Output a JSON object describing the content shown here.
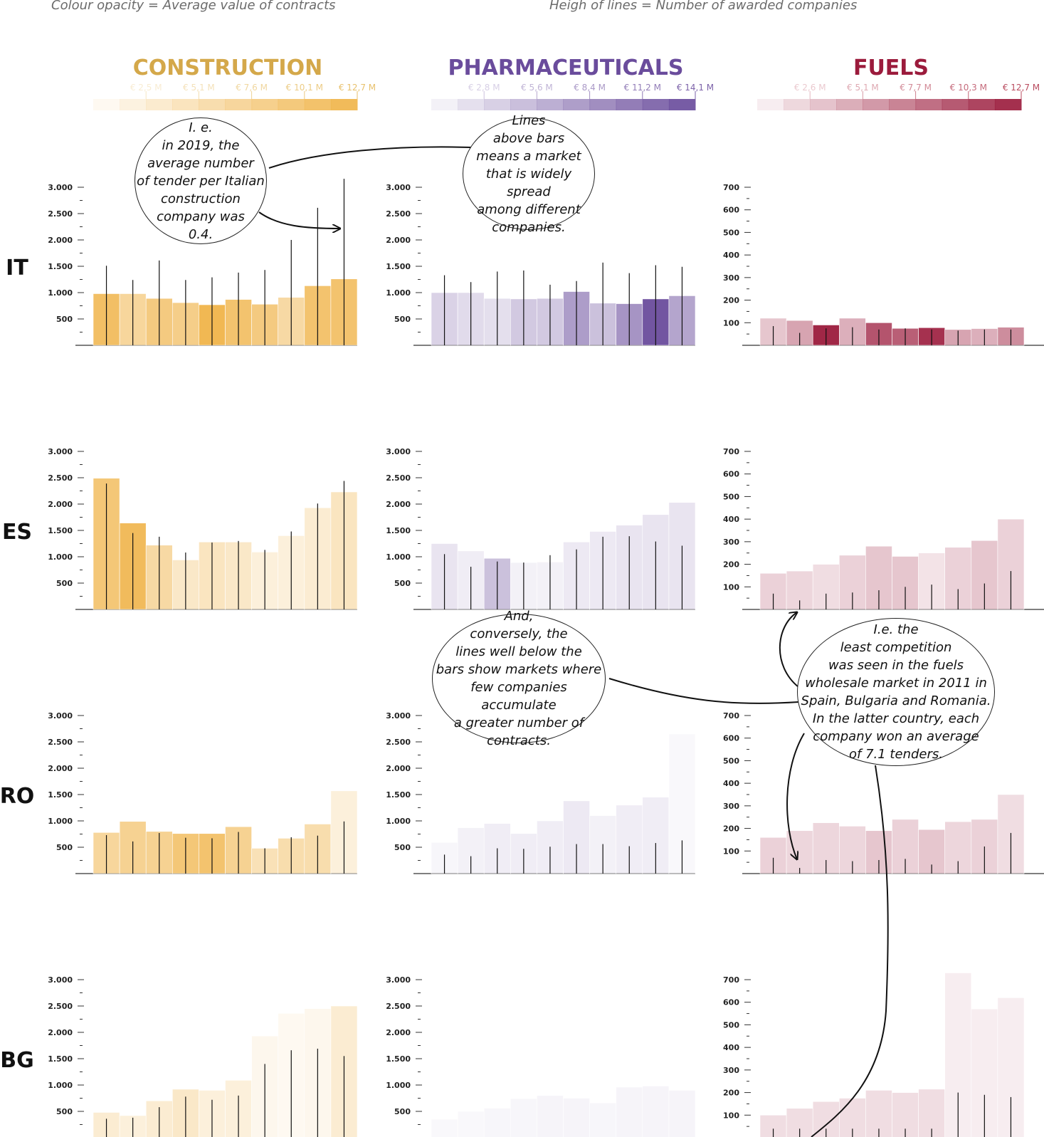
{
  "header": {
    "left_note": "Colour opacity = Average value of contracts",
    "right_note": "Heigh of lines = Number of awarded companies"
  },
  "annotations": [
    "I. e.\nin 2019, the\naverage number\nof tender per Italian\nconstruction\ncompany was\n0.4.",
    "Lines\nabove bars\nmeans a market\nthat is widely spread\namong different\ncompanies.",
    "And,\nconversely, the\nlines well below the\nbars show markets where\nfew companies accumulate\na greater number of\ncontracts.",
    "I.e. the\nleast competition\nwas seen in the fuels\nwholesale market in 2011 in\nSpain, Bulgaria and Romania.\nIn the latter country, each\ncompany won an average\nof 7.1 tenders."
  ],
  "chart_data": {
    "type": "bar",
    "countries": [
      "IT",
      "ES",
      "RO",
      "BG"
    ],
    "sectors": [
      {
        "name": "CONSTRUCTION",
        "color": "#f0b44a",
        "title_color": "#d4a84a",
        "label_color": "#e8c06a",
        "legend_labels": [
          "€ 2,5 M",
          "€ 5,1 M",
          "€ 7,6 M",
          "€ 10,1 M",
          "€ 12,7 M"
        ],
        "ylim": [
          0,
          3000
        ],
        "ticks": [
          500,
          1000,
          1500,
          2000,
          2500,
          3000
        ],
        "tick_labels": [
          "500",
          "1.000",
          "1.500",
          "2.000",
          "2.500",
          "3.000"
        ],
        "rows": [
          {
            "country": "IT",
            "bars": [
              980,
              980,
              890,
              810,
              770,
              870,
              780,
              910,
              1130,
              1260
            ],
            "opacity": [
              0.85,
              0.55,
              0.7,
              0.65,
              0.95,
              0.8,
              0.7,
              0.5,
              0.8,
              0.8
            ],
            "lines": [
              1510,
              1240,
              1610,
              1240,
              1290,
              1380,
              1430,
              2000,
              2610,
              3160
            ]
          },
          {
            "country": "ES",
            "bars": [
              2490,
              1640,
              1220,
              940,
              1280,
              1280,
              1090,
              1400,
              1930,
              2230
            ],
            "opacity": [
              0.75,
              0.9,
              0.5,
              0.3,
              0.35,
              0.3,
              0.2,
              0.2,
              0.25,
              0.35
            ],
            "lines": [
              2390,
              1450,
              1380,
              1080,
              1270,
              1300,
              1130,
              1480,
              2010,
              2440
            ]
          },
          {
            "country": "RO",
            "bars": [
              780,
              990,
              800,
              760,
              760,
              890,
              480,
              670,
              940,
              1570
            ],
            "opacity": [
              0.55,
              0.6,
              0.6,
              0.75,
              0.8,
              0.6,
              0.4,
              0.45,
              0.45,
              0.2
            ],
            "lines": [
              730,
              610,
              770,
              680,
              670,
              790,
              480,
              690,
              720,
              990
            ]
          },
          {
            "country": "BG",
            "bars": [
              480,
              420,
              700,
              920,
              900,
              1090,
              1930,
              2360,
              2450,
              2500
            ],
            "opacity": [
              0.25,
              0.2,
              0.25,
              0.3,
              0.2,
              0.2,
              0.1,
              0.08,
              0.1,
              0.25
            ],
            "lines": [
              360,
              380,
              580,
              780,
              720,
              800,
              1400,
              1660,
              1690,
              1550
            ]
          }
        ]
      },
      {
        "name": "PHARMACEUTICALS",
        "color": "#6a4c9c",
        "title_color": "#6a4c9c",
        "label_color": "#7a60a8",
        "legend_labels": [
          "€ 2,8 M",
          "€ 5,6 M",
          "€ 8,4 M",
          "€ 11,2 M",
          "€ 14,1 M"
        ],
        "ylim": [
          0,
          3000
        ],
        "ticks": [
          500,
          1000,
          1500,
          2000,
          2500,
          3000
        ],
        "tick_labels": [
          "500",
          "1.000",
          "1.500",
          "2.000",
          "2.500",
          "3.000"
        ],
        "rows": [
          {
            "country": "IT",
            "bars": [
              1000,
              1000,
              890,
              880,
              890,
              1020,
              800,
              790,
              880,
              940
            ],
            "opacity": [
              0.25,
              0.2,
              0.18,
              0.3,
              0.3,
              0.55,
              0.35,
              0.6,
              0.95,
              0.5
            ],
            "lines": [
              1330,
              1200,
              1400,
              1420,
              1150,
              1220,
              1570,
              1370,
              1520,
              1490
            ]
          },
          {
            "country": "ES",
            "bars": [
              1250,
              1110,
              970,
              890,
              900,
              1280,
              1480,
              1600,
              1800,
              2030
            ],
            "opacity": [
              0.15,
              0.1,
              0.35,
              0.08,
              0.08,
              0.12,
              0.12,
              0.15,
              0.15,
              0.15
            ],
            "lines": [
              1050,
              810,
              910,
              890,
              1030,
              1140,
              1380,
              1390,
              1290,
              1210
            ]
          },
          {
            "country": "RO",
            "bars": [
              590,
              870,
              950,
              760,
              1000,
              1380,
              1100,
              1300,
              1450,
              2650
            ],
            "opacity": [
              0.05,
              0.08,
              0.1,
              0.1,
              0.1,
              0.12,
              0.08,
              0.1,
              0.1,
              0.04
            ],
            "lines": [
              360,
              330,
              480,
              470,
              510,
              560,
              560,
              520,
              580,
              630
            ]
          },
          {
            "country": "BG",
            "bars": [
              350,
              500,
              560,
              740,
              800,
              750,
              660,
              960,
              980,
              900
            ],
            "opacity": [
              0.04,
              0.04,
              0.05,
              0.05,
              0.06,
              0.06,
              0.05,
              0.06,
              0.06,
              0.06
            ],
            "lines": [
              0,
              0,
              0,
              0,
              0,
              0,
              0,
              0,
              0,
              0
            ]
          }
        ]
      },
      {
        "name": "FUELS",
        "color": "#9b1b3c",
        "title_color": "#9b1b3c",
        "label_color": "#b8485c",
        "legend_labels": [
          "€ 2,6 M",
          "€ 5,1 M",
          "€ 7,7 M",
          "€ 10,3 M",
          "€ 12,7 M"
        ],
        "ylim": [
          0,
          700
        ],
        "ticks": [
          100,
          200,
          300,
          400,
          500,
          600,
          700
        ],
        "tick_labels": [
          "100",
          "200",
          "300",
          "400",
          "500",
          "600",
          "700"
        ],
        "rows": [
          {
            "country": "IT",
            "bars": [
              120,
              110,
              90,
              120,
              100,
              75,
              78,
              70,
              74,
              80
            ],
            "opacity": [
              0.25,
              0.4,
              0.95,
              0.35,
              0.75,
              0.7,
              0.9,
              0.4,
              0.35,
              0.5
            ],
            "lines": [
              85,
              55,
              75,
              80,
              70,
              75,
              70,
              65,
              70,
              70
            ]
          },
          {
            "country": "ES",
            "bars": [
              160,
              170,
              200,
              240,
              280,
              235,
              250,
              275,
              305,
              400
            ],
            "opacity": [
              0.2,
              0.18,
              0.15,
              0.2,
              0.25,
              0.25,
              0.12,
              0.2,
              0.25,
              0.2
            ],
            "lines": [
              70,
              40,
              70,
              75,
              85,
              100,
              110,
              90,
              115,
              170
            ]
          },
          {
            "country": "RO",
            "bars": [
              160,
              190,
              225,
              210,
              190,
              240,
              195,
              230,
              240,
              350
            ],
            "opacity": [
              0.2,
              0.18,
              0.18,
              0.18,
              0.25,
              0.2,
              0.25,
              0.18,
              0.2,
              0.15
            ],
            "lines": [
              70,
              25,
              60,
              55,
              60,
              65,
              40,
              55,
              120,
              180
            ]
          },
          {
            "country": "BG",
            "bars": [
              100,
              130,
              160,
              175,
              210,
              200,
              215,
              730,
              570,
              620
            ],
            "opacity": [
              0.15,
              0.15,
              0.15,
              0.15,
              0.15,
              0.15,
              0.15,
              0.08,
              0.08,
              0.08
            ],
            "lines": [
              40,
              40,
              40,
              40,
              40,
              40,
              40,
              200,
              190,
              180
            ]
          }
        ]
      }
    ]
  }
}
